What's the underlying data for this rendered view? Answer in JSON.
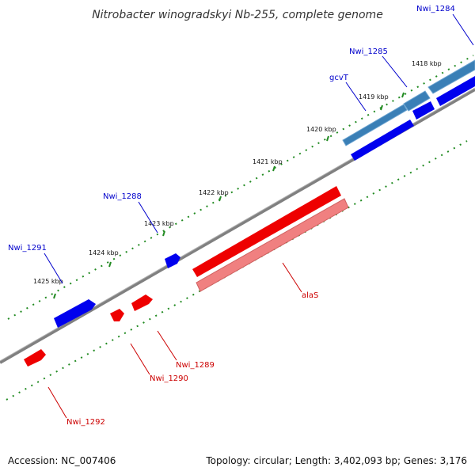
{
  "title": "Nitrobacter winogradskyi Nb-255, complete genome",
  "footer": {
    "accession": "Accession: NC_007406",
    "summary": "Topology: circular; Length: 3,402,093 bp; Genes: 3,176"
  },
  "colors": {
    "forward": "#0000ee",
    "forward_label": "#0000cc",
    "reverse": "#ee0000",
    "reverse_label": "#cc0000",
    "rna": "#3a7fb6",
    "rrna_pink": "#f08080",
    "backbone": "#808080",
    "tick": "#228b22"
  },
  "ruler": {
    "labels": [
      "1418 kbp",
      "1419 kbp",
      "1420 kbp",
      "1421 kbp",
      "1422 kbp",
      "1423 kbp",
      "1424 kbp",
      "1425 kbp"
    ]
  },
  "genes": {
    "Nwi_1284": "Nwi_1284",
    "Nwi_1285": "Nwi_1285",
    "gcvT": "gcvT",
    "Nwi_1288": "Nwi_1288",
    "Nwi_1291": "Nwi_1291",
    "alaS": "alaS",
    "Nwi_1289": "Nwi_1289",
    "Nwi_1290": "Nwi_1290",
    "Nwi_1292": "Nwi_1292"
  }
}
